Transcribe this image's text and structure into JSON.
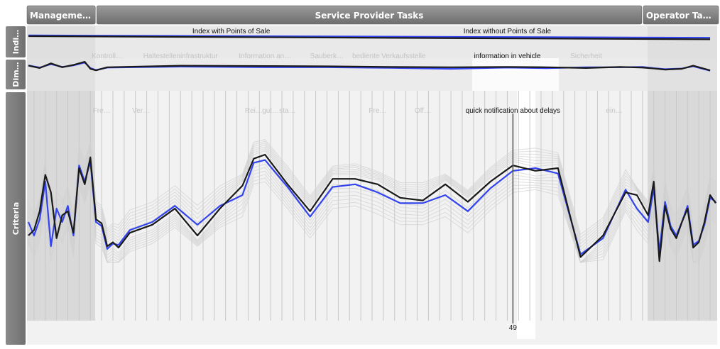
{
  "chart_data": {
    "type": "line",
    "groups": [
      {
        "label": "Manageme…",
        "start": 0,
        "end": 12
      },
      {
        "label": "Service Provider Tasks",
        "start": 12,
        "end": 109
      },
      {
        "label": "Operator Ta…",
        "start": 109,
        "end": 121
      }
    ],
    "row_labels": {
      "indicators": "Indi…",
      "dimensions": "Dim…",
      "criteria": "Criteria"
    },
    "indicator_labels": [
      {
        "text": "Index with Points of Sale",
        "at": 36,
        "faded": false
      },
      {
        "text": "Index without Points of Sale",
        "at": 85,
        "faded": false
      }
    ],
    "dimension_labels": [
      {
        "text": "Kontroll…",
        "at": 14,
        "faded": true
      },
      {
        "text": "Haltestelleninfrastruktur",
        "at": 27,
        "faded": true
      },
      {
        "text": "Information an…",
        "at": 42,
        "faded": true
      },
      {
        "text": "Sauberk…",
        "at": 53,
        "faded": true
      },
      {
        "text": "bediente Verkaufsstelle",
        "at": 64,
        "faded": true
      },
      {
        "text": "information in vehicle",
        "at": 85,
        "faded": false
      },
      {
        "text": "Sicherheit",
        "at": 99,
        "faded": true
      }
    ],
    "criteria_labels": [
      {
        "text": "Fre…",
        "at": 13,
        "faded": true
      },
      {
        "text": "Ver…",
        "at": 20,
        "faded": true
      },
      {
        "text": "Rei…",
        "at": 40,
        "faded": true
      },
      {
        "text": "gut…",
        "at": 43,
        "faded": true
      },
      {
        "text": "sta…",
        "at": 46,
        "faded": true
      },
      {
        "text": "Fre…",
        "at": 62,
        "faded": true
      },
      {
        "text": "Off…",
        "at": 70,
        "faded": true
      },
      {
        "text": "quick notification about delays",
        "at": 86,
        "faded": false
      },
      {
        "text": "ein…",
        "at": 104,
        "faded": true
      }
    ],
    "selected_axis": {
      "at": 86,
      "value_label": "49"
    },
    "ylim": [
      0,
      100
    ],
    "series": [
      {
        "color": "#1a1a1a",
        "indicator": [
          [
            0,
            50
          ],
          [
            121,
            30
          ]
        ],
        "dimension": [
          [
            0,
            70
          ],
          [
            2,
            55
          ],
          [
            4,
            85
          ],
          [
            6,
            60
          ],
          [
            8,
            75
          ],
          [
            10,
            95
          ],
          [
            11,
            50
          ],
          [
            12,
            40
          ],
          [
            14,
            60
          ],
          [
            27,
            70
          ],
          [
            42,
            68
          ],
          [
            53,
            66
          ],
          [
            64,
            62
          ],
          [
            75,
            60
          ],
          [
            85,
            62
          ],
          [
            92,
            60
          ],
          [
            99,
            55
          ],
          [
            105,
            62
          ],
          [
            109,
            58
          ],
          [
            111,
            52
          ],
          [
            113,
            45
          ],
          [
            116,
            50
          ],
          [
            118,
            70
          ],
          [
            121,
            40
          ]
        ],
        "criteria": [
          [
            0,
            20
          ],
          [
            1,
            24
          ],
          [
            2,
            38
          ],
          [
            3,
            65
          ],
          [
            4,
            52
          ],
          [
            5,
            18
          ],
          [
            6,
            35
          ],
          [
            7,
            38
          ],
          [
            8,
            22
          ],
          [
            9,
            70
          ],
          [
            10,
            58
          ],
          [
            11,
            78
          ],
          [
            12,
            32
          ],
          [
            13,
            29
          ],
          [
            14,
            12
          ],
          [
            15,
            15
          ],
          [
            16,
            11
          ],
          [
            18,
            22
          ],
          [
            22,
            28
          ],
          [
            26,
            40
          ],
          [
            30,
            20
          ],
          [
            34,
            40
          ],
          [
            38,
            57
          ],
          [
            40,
            77
          ],
          [
            42,
            80
          ],
          [
            46,
            58
          ],
          [
            50,
            38
          ],
          [
            54,
            62
          ],
          [
            58,
            62
          ],
          [
            62,
            58
          ],
          [
            66,
            48
          ],
          [
            70,
            46
          ],
          [
            74,
            58
          ],
          [
            78,
            45
          ],
          [
            82,
            60
          ],
          [
            86,
            72
          ],
          [
            90,
            68
          ],
          [
            94,
            70
          ],
          [
            98,
            4
          ],
          [
            102,
            20
          ],
          [
            106,
            52
          ],
          [
            108,
            50
          ],
          [
            110,
            35
          ],
          [
            111,
            60
          ],
          [
            112,
            1
          ],
          [
            113,
            42
          ],
          [
            114,
            25
          ],
          [
            115,
            18
          ],
          [
            116,
            30
          ],
          [
            117,
            40
          ],
          [
            118,
            11
          ],
          [
            119,
            15
          ],
          [
            120,
            30
          ],
          [
            121,
            50
          ],
          [
            122,
            44
          ]
        ]
      },
      {
        "color": "#3344ee",
        "indicator": [
          [
            0,
            55
          ],
          [
            121,
            40
          ]
        ],
        "dimension": [
          [
            0,
            72
          ],
          [
            2,
            58
          ],
          [
            4,
            80
          ],
          [
            6,
            62
          ],
          [
            8,
            72
          ],
          [
            10,
            90
          ],
          [
            11,
            55
          ],
          [
            12,
            42
          ],
          [
            14,
            58
          ],
          [
            27,
            64
          ],
          [
            42,
            60
          ],
          [
            53,
            60
          ],
          [
            64,
            56
          ],
          [
            75,
            50
          ],
          [
            85,
            58
          ],
          [
            92,
            54
          ],
          [
            99,
            60
          ],
          [
            105,
            60
          ],
          [
            109,
            62
          ],
          [
            111,
            54
          ],
          [
            113,
            48
          ],
          [
            116,
            52
          ],
          [
            118,
            66
          ],
          [
            121,
            38
          ]
        ],
        "criteria": [
          [
            0,
            30
          ],
          [
            1,
            20
          ],
          [
            2,
            32
          ],
          [
            3,
            60
          ],
          [
            4,
            12
          ],
          [
            5,
            40
          ],
          [
            6,
            30
          ],
          [
            7,
            42
          ],
          [
            8,
            20
          ],
          [
            9,
            72
          ],
          [
            10,
            60
          ],
          [
            11,
            75
          ],
          [
            12,
            30
          ],
          [
            13,
            27
          ],
          [
            14,
            10
          ],
          [
            15,
            14
          ],
          [
            16,
            13
          ],
          [
            18,
            24
          ],
          [
            22,
            30
          ],
          [
            26,
            42
          ],
          [
            30,
            28
          ],
          [
            34,
            42
          ],
          [
            38,
            50
          ],
          [
            40,
            74
          ],
          [
            42,
            76
          ],
          [
            46,
            56
          ],
          [
            50,
            34
          ],
          [
            54,
            56
          ],
          [
            58,
            58
          ],
          [
            62,
            52
          ],
          [
            66,
            44
          ],
          [
            70,
            44
          ],
          [
            74,
            50
          ],
          [
            78,
            38
          ],
          [
            82,
            55
          ],
          [
            86,
            68
          ],
          [
            90,
            70
          ],
          [
            94,
            66
          ],
          [
            98,
            6
          ],
          [
            102,
            18
          ],
          [
            106,
            54
          ],
          [
            108,
            40
          ],
          [
            110,
            30
          ],
          [
            111,
            55
          ],
          [
            112,
            8
          ],
          [
            113,
            45
          ],
          [
            114,
            27
          ],
          [
            115,
            20
          ],
          [
            116,
            30
          ],
          [
            117,
            42
          ],
          [
            118,
            13
          ],
          [
            119,
            16
          ],
          [
            120,
            28
          ],
          [
            121,
            48
          ],
          [
            122,
            45
          ]
        ]
      }
    ]
  }
}
